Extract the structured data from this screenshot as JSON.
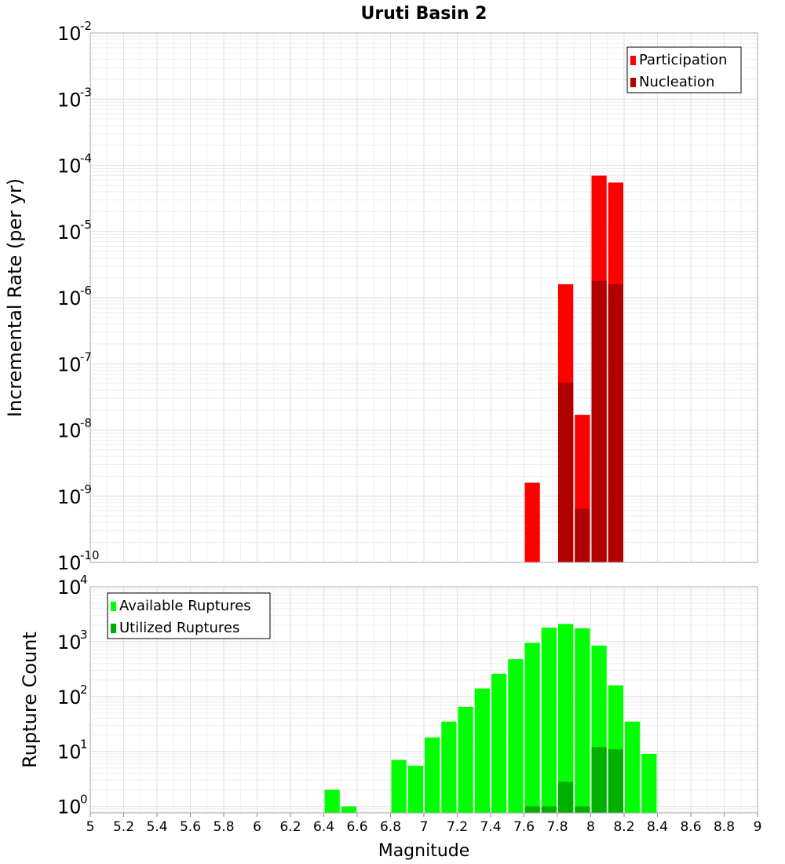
{
  "chart_data": {
    "title": "Uruti Basin 2",
    "xlabel": "Magnitude",
    "xlim": [
      5,
      9
    ],
    "xticks": [
      "5",
      "5.2",
      "5.4",
      "5.6",
      "5.8",
      "6",
      "6.2",
      "6.4",
      "6.6",
      "6.8",
      "7",
      "7.2",
      "7.4",
      "7.6",
      "7.8",
      "8",
      "8.2",
      "8.4",
      "8.6",
      "8.8",
      "9"
    ],
    "bin_width": 0.1,
    "grid": true,
    "panels": [
      {
        "type": "bar",
        "scale": "log",
        "ylabel": "Incremental Rate (per yr)",
        "ylim_exp": [
          -10,
          -2
        ],
        "ytick_exponents": [
          "-2",
          "-3",
          "-4",
          "-5",
          "-6",
          "-7",
          "-8",
          "-9",
          "-10"
        ],
        "legend_position": "top-right",
        "series": [
          {
            "name": "Participation",
            "color": "#ff0000",
            "points": [
              {
                "x": 7.65,
                "y": 1.6e-09
              },
              {
                "x": 7.85,
                "y": 1.6e-06
              },
              {
                "x": 7.95,
                "y": 1.7e-08
              },
              {
                "x": 8.05,
                "y": 7e-05
              },
              {
                "x": 8.15,
                "y": 5.5e-05
              }
            ]
          },
          {
            "name": "Nucleation",
            "color": "#b00000",
            "points": [
              {
                "x": 7.85,
                "y": 5.2e-08
              },
              {
                "x": 7.95,
                "y": 6.5e-10
              },
              {
                "x": 8.05,
                "y": 1.8e-06
              },
              {
                "x": 8.15,
                "y": 1.6e-06
              }
            ]
          }
        ]
      },
      {
        "type": "bar",
        "scale": "log",
        "ylabel": "Rupture Count",
        "ylim_exp": [
          -0.12,
          4
        ],
        "ytick_exponents": [
          "4",
          "3",
          "2",
          "1",
          "0"
        ],
        "legend_position": "top-left",
        "series": [
          {
            "name": "Available Ruptures",
            "color": "#00ff00",
            "points": [
              {
                "x": 6.45,
                "y": 2
              },
              {
                "x": 6.55,
                "y": 1
              },
              {
                "x": 6.85,
                "y": 7
              },
              {
                "x": 6.95,
                "y": 5.5
              },
              {
                "x": 7.05,
                "y": 18
              },
              {
                "x": 7.15,
                "y": 35
              },
              {
                "x": 7.25,
                "y": 65
              },
              {
                "x": 7.35,
                "y": 140
              },
              {
                "x": 7.45,
                "y": 260
              },
              {
                "x": 7.55,
                "y": 480
              },
              {
                "x": 7.65,
                "y": 950
              },
              {
                "x": 7.75,
                "y": 1800
              },
              {
                "x": 7.85,
                "y": 2100
              },
              {
                "x": 7.95,
                "y": 1750
              },
              {
                "x": 8.05,
                "y": 850
              },
              {
                "x": 8.15,
                "y": 160
              },
              {
                "x": 8.25,
                "y": 35
              },
              {
                "x": 8.35,
                "y": 9
              }
            ]
          },
          {
            "name": "Utilized Ruptures",
            "color": "#00b000",
            "points": [
              {
                "x": 7.65,
                "y": 1
              },
              {
                "x": 7.75,
                "y": 1
              },
              {
                "x": 7.85,
                "y": 2.8
              },
              {
                "x": 7.95,
                "y": 1
              },
              {
                "x": 8.05,
                "y": 12
              },
              {
                "x": 8.15,
                "y": 11
              }
            ]
          }
        ]
      }
    ]
  }
}
